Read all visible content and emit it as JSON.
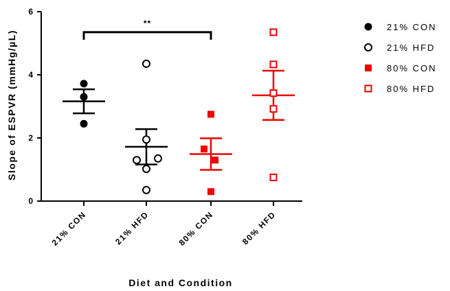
{
  "chart_data": {
    "type": "scatter",
    "xlabel": "Diet and Condition",
    "ylabel": "Slope of ESPVR (mmHg/µL)",
    "ylim": [
      0,
      6
    ],
    "yticks": [
      0,
      2,
      4,
      6
    ],
    "categories": [
      "21% CON",
      "21% HFD",
      "80% CON",
      "80% HFD"
    ],
    "series": [
      {
        "name": "21% CON",
        "color": "#000000",
        "marker": "circle-filled",
        "points": [
          3.72,
          3.3,
          2.45
        ],
        "mean": 3.16,
        "sem": 0.38
      },
      {
        "name": "21% HFD",
        "color": "#000000",
        "marker": "circle-open",
        "points": [
          4.35,
          1.95,
          1.3,
          1.35,
          1.02,
          0.35
        ],
        "mean": 1.72,
        "sem": 0.56
      },
      {
        "name": "80% CON",
        "color": "#ee0000",
        "marker": "square-filled",
        "points": [
          2.75,
          1.65,
          1.3,
          0.3
        ],
        "mean": 1.49,
        "sem": 0.5
      },
      {
        "name": "80% HFD",
        "color": "#ee0000",
        "marker": "square-open",
        "points": [
          5.35,
          4.33,
          3.42,
          2.92,
          0.75
        ],
        "mean": 3.35,
        "sem": 0.78
      }
    ],
    "significance": {
      "from": "21% CON",
      "to": "80% CON",
      "label": "**",
      "y": 5.35
    },
    "legend_position": "top-right"
  }
}
